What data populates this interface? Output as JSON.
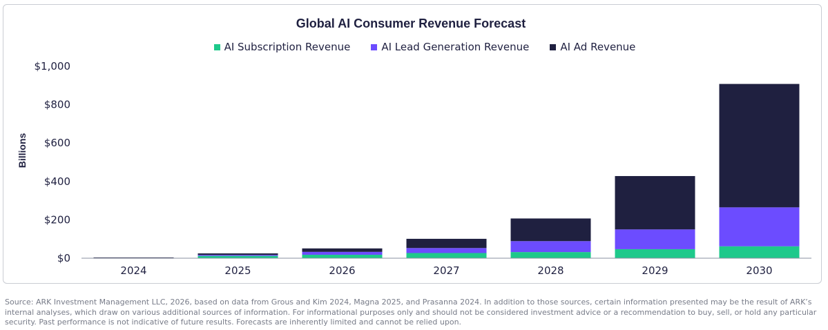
{
  "chart_data": {
    "type": "bar",
    "stacked": true,
    "title": "Global AI Consumer Revenue Forecast",
    "ylabel": "Billions",
    "xlabel": "",
    "categories": [
      "2024",
      "2025",
      "2026",
      "2027",
      "2028",
      "2029",
      "2030"
    ],
    "ylim": [
      0,
      1000
    ],
    "yticks": [
      "$0",
      "$200",
      "$400",
      "$600",
      "$800",
      "$1,000"
    ],
    "ytick_values": [
      0,
      200,
      400,
      600,
      800,
      1000
    ],
    "legend_position": "top-center",
    "grid": false,
    "series": [
      {
        "name": "AI Subscription Revenue",
        "color": "#1ec98b",
        "values": [
          2,
          12,
          18,
          27,
          32,
          47,
          62
        ]
      },
      {
        "name": "AI Lead Generation Revenue",
        "color": "#6c4cff",
        "values": [
          1,
          5,
          15,
          26,
          57,
          103,
          203
        ]
      },
      {
        "name": "AI Ad Revenue",
        "color": "#1f2040",
        "values": [
          1,
          8,
          18,
          48,
          118,
          278,
          643
        ]
      }
    ]
  },
  "source_note": "Source: ARK Investment Management LLC, 2026, based on data from Grous and Kim 2024, Magna 2025, and Prasanna 2024. In addition to those sources, certain information presented may be the result of ARK’s internal analyses, which draw on various additional sources of information. For informational purposes only and should not be considered investment advice or a recommendation to buy, sell, or hold any particular security. Past performance is not indicative of future results. Forecasts are inherently limited and cannot be relied upon."
}
